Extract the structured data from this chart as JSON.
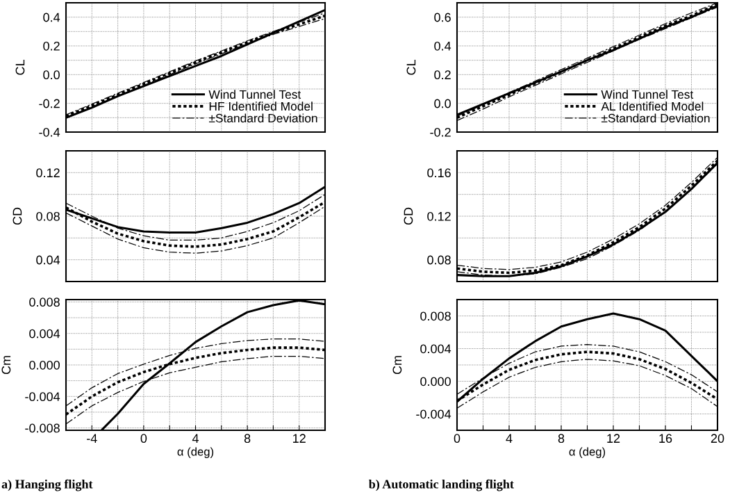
{
  "chart_data": [
    {
      "type": "line",
      "ylabel": "CL",
      "xlim": [
        -6,
        14
      ],
      "xticks": [
        {
          "value": -6,
          "label": null
        },
        -4,
        {
          "value": -2,
          "label": null
        },
        0,
        {
          "value": 2,
          "label": null
        },
        4,
        {
          "value": 6,
          "label": null
        },
        8,
        {
          "value": 10,
          "label": null
        },
        12,
        {
          "value": 14,
          "label": null
        }
      ],
      "ylim": [
        -0.4,
        0.5
      ],
      "yticks": [
        {
          "value": -0.4,
          "label": "-0.4"
        },
        {
          "value": -0.3,
          "label": null
        },
        {
          "value": -0.2,
          "label": "-0.2"
        },
        {
          "value": -0.1,
          "label": null
        },
        {
          "value": 0.0,
          "label": "0.0"
        },
        {
          "value": 0.1,
          "label": null
        },
        {
          "value": 0.2,
          "label": "0.2"
        },
        {
          "value": 0.3,
          "label": null
        },
        {
          "value": 0.4,
          "label": "0.4"
        },
        {
          "value": 0.5,
          "label": null
        }
      ],
      "tick_labels": "y",
      "grid": true,
      "legend": "bottom right",
      "x": [
        -6,
        -4,
        -2,
        0,
        2,
        4,
        6,
        8,
        10,
        12,
        14
      ],
      "series": [
        {
          "name": "Wind Tunnel Test",
          "color": "#000000",
          "line_style": "solid",
          "values": [
            -0.3,
            -0.23,
            -0.15,
            -0.08,
            -0.01,
            0.06,
            0.13,
            0.21,
            0.29,
            0.37,
            0.45
          ]
        },
        {
          "name": "HF Identified Model",
          "color": "#000000",
          "line_style": "dotted",
          "values": [
            -0.29,
            -0.215,
            -0.14,
            -0.065,
            0.01,
            0.085,
            0.155,
            0.225,
            0.29,
            0.35,
            0.41
          ]
        },
        {
          "name": "±Standard Deviation",
          "color": "#000000",
          "line_style": "dashed",
          "values": [
            -0.28,
            -0.205,
            -0.13,
            -0.055,
            0.02,
            0.095,
            0.165,
            0.235,
            0.3,
            0.365,
            0.43
          ]
        },
        {
          "color": "#000000",
          "line_style": "dashed",
          "values": [
            -0.3,
            -0.225,
            -0.15,
            -0.075,
            0.0,
            0.075,
            0.145,
            0.215,
            0.28,
            0.335,
            0.39
          ]
        }
      ]
    },
    {
      "type": "line",
      "ylabel": "CL",
      "xlim": [
        0,
        20
      ],
      "xticks": [
        0,
        {
          "value": 2,
          "label": null
        },
        4,
        {
          "value": 6,
          "label": null
        },
        8,
        {
          "value": 10,
          "label": null
        },
        12,
        {
          "value": 14,
          "label": null
        },
        16,
        {
          "value": 18,
          "label": null
        },
        20
      ],
      "ylim": [
        -0.2,
        0.7
      ],
      "yticks": [
        {
          "value": -0.2,
          "label": "-0.2"
        },
        {
          "value": -0.1,
          "label": null
        },
        {
          "value": 0.0,
          "label": "0.0"
        },
        {
          "value": 0.1,
          "label": null
        },
        {
          "value": 0.2,
          "label": "0.2"
        },
        {
          "value": 0.3,
          "label": null
        },
        {
          "value": 0.4,
          "label": "0.4"
        },
        {
          "value": 0.5,
          "label": null
        },
        {
          "value": 0.6,
          "label": "0.6"
        },
        {
          "value": 0.7,
          "label": null
        }
      ],
      "tick_labels": "y",
      "grid": true,
      "legend": "bottom right",
      "x": [
        0,
        2,
        4,
        6,
        8,
        10,
        12,
        14,
        16,
        18,
        20
      ],
      "series": [
        {
          "name": "Wind Tunnel Test",
          "color": "#000000",
          "line_style": "solid",
          "values": [
            -0.08,
            -0.005,
            0.07,
            0.145,
            0.22,
            0.3,
            0.37,
            0.45,
            0.53,
            0.6,
            0.68
          ]
        },
        {
          "name": "AL Identified Model",
          "color": "#000000",
          "line_style": "dotted",
          "values": [
            -0.1,
            -0.02,
            0.06,
            0.14,
            0.22,
            0.3,
            0.38,
            0.46,
            0.54,
            0.61,
            0.69
          ]
        },
        {
          "name": "±Standard Deviation",
          "color": "#000000",
          "line_style": "dashed",
          "values": [
            -0.09,
            -0.01,
            0.075,
            0.155,
            0.235,
            0.315,
            0.395,
            0.475,
            0.555,
            0.63,
            0.7
          ]
        },
        {
          "color": "#000000",
          "line_style": "dashed",
          "values": [
            -0.12,
            -0.04,
            0.045,
            0.125,
            0.205,
            0.285,
            0.365,
            0.445,
            0.52,
            0.595,
            0.67
          ]
        }
      ]
    },
    {
      "type": "line",
      "ylabel": "CD",
      "xlim": [
        -6,
        14
      ],
      "xticks": [
        {
          "value": -6,
          "label": null
        },
        -4,
        {
          "value": -2,
          "label": null
        },
        0,
        {
          "value": 2,
          "label": null
        },
        4,
        {
          "value": 6,
          "label": null
        },
        8,
        {
          "value": 10,
          "label": null
        },
        12,
        {
          "value": 14,
          "label": null
        }
      ],
      "ylim": [
        0.02,
        0.14
      ],
      "yticks": [
        {
          "value": 0.02,
          "label": null
        },
        {
          "value": 0.04,
          "label": "0.04"
        },
        {
          "value": 0.06,
          "label": null
        },
        {
          "value": 0.08,
          "label": "0.08"
        },
        {
          "value": 0.1,
          "label": null
        },
        {
          "value": 0.12,
          "label": "0.12"
        },
        {
          "value": 0.14,
          "label": null
        }
      ],
      "tick_labels": "y",
      "grid": true,
      "x": [
        -6,
        -4,
        -2,
        0,
        2,
        4,
        6,
        8,
        10,
        12,
        14
      ],
      "series": [
        {
          "color": "#000000",
          "line_style": "solid",
          "values": [
            0.086,
            0.078,
            0.07,
            0.066,
            0.065,
            0.065,
            0.069,
            0.074,
            0.082,
            0.092,
            0.107
          ]
        },
        {
          "color": "#000000",
          "line_style": "dotted",
          "values": [
            0.088,
            0.075,
            0.064,
            0.057,
            0.053,
            0.052,
            0.054,
            0.059,
            0.066,
            0.079,
            0.093
          ]
        },
        {
          "color": "#000000",
          "line_style": "dashed",
          "values": [
            0.092,
            0.08,
            0.069,
            0.062,
            0.058,
            0.058,
            0.06,
            0.066,
            0.074,
            0.085,
            0.1
          ]
        },
        {
          "color": "#000000",
          "line_style": "dashed",
          "values": [
            0.083,
            0.071,
            0.059,
            0.051,
            0.047,
            0.046,
            0.048,
            0.053,
            0.06,
            0.074,
            0.089
          ]
        }
      ]
    },
    {
      "type": "line",
      "ylabel": "CD",
      "xlim": [
        0,
        20
      ],
      "xticks": [
        0,
        {
          "value": 2,
          "label": null
        },
        4,
        {
          "value": 6,
          "label": null
        },
        8,
        {
          "value": 10,
          "label": null
        },
        12,
        {
          "value": 14,
          "label": null
        },
        16,
        {
          "value": 18,
          "label": null
        },
        20
      ],
      "ylim": [
        0.06,
        0.18
      ],
      "yticks": [
        {
          "value": 0.06,
          "label": null
        },
        {
          "value": 0.08,
          "label": "0.08"
        },
        {
          "value": 0.1,
          "label": null
        },
        {
          "value": 0.12,
          "label": "0.12"
        },
        {
          "value": 0.14,
          "label": null
        },
        {
          "value": 0.16,
          "label": "0.16"
        },
        {
          "value": 0.18,
          "label": null
        }
      ],
      "tick_labels": "y",
      "grid": true,
      "x": [
        0,
        2,
        4,
        6,
        8,
        10,
        12,
        14,
        16,
        18,
        20
      ],
      "series": [
        {
          "color": "#000000",
          "line_style": "solid",
          "values": [
            0.066,
            0.065,
            0.065,
            0.068,
            0.074,
            0.083,
            0.094,
            0.108,
            0.124,
            0.145,
            0.169
          ]
        },
        {
          "color": "#000000",
          "line_style": "dotted",
          "values": [
            0.072,
            0.069,
            0.068,
            0.07,
            0.075,
            0.084,
            0.096,
            0.11,
            0.127,
            0.148,
            0.171
          ]
        },
        {
          "color": "#000000",
          "line_style": "dashed",
          "values": [
            0.075,
            0.072,
            0.071,
            0.073,
            0.078,
            0.087,
            0.099,
            0.113,
            0.13,
            0.151,
            0.174
          ]
        },
        {
          "color": "#000000",
          "line_style": "dashed",
          "values": [
            0.069,
            0.066,
            0.065,
            0.067,
            0.073,
            0.081,
            0.093,
            0.107,
            0.124,
            0.145,
            0.168
          ]
        }
      ]
    },
    {
      "type": "line",
      "ylabel": "Cm",
      "xlabel": "α (deg)",
      "xlim": [
        -6,
        14
      ],
      "xticks": [
        {
          "value": -6,
          "label": null
        },
        -4,
        {
          "value": -2,
          "label": null
        },
        0,
        {
          "value": 2,
          "label": null
        },
        4,
        {
          "value": 6,
          "label": null
        },
        8,
        {
          "value": 10,
          "label": null
        },
        12,
        {
          "value": 14,
          "label": null
        }
      ],
      "ylim": [
        -0.0083,
        0.0083
      ],
      "yticks": [
        {
          "value": -0.008,
          "label": "-0.008"
        },
        {
          "value": -0.006,
          "label": null
        },
        {
          "value": -0.004,
          "label": "-0.004"
        },
        {
          "value": -0.002,
          "label": null
        },
        {
          "value": 0.0,
          "label": "0.000"
        },
        {
          "value": 0.002,
          "label": null
        },
        {
          "value": 0.004,
          "label": "0.004"
        },
        {
          "value": 0.006,
          "label": null
        },
        {
          "value": 0.008,
          "label": "0.008"
        }
      ],
      "grid": true,
      "annotations": [
        "a) Hanging flight"
      ],
      "x": [
        -6,
        -4,
        -2,
        0,
        2,
        4,
        6,
        8,
        10,
        12,
        14
      ],
      "series": [
        {
          "color": "#000000",
          "line_style": "solid",
          "x": [
            -3.2,
            -2,
            0,
            2,
            4,
            6,
            8,
            10,
            12,
            14
          ],
          "values": [
            -0.0082,
            -0.0062,
            -0.0024,
            0.0002,
            0.0029,
            0.0049,
            0.0067,
            0.0076,
            0.0082,
            0.0077
          ]
        },
        {
          "color": "#000000",
          "line_style": "dotted",
          "values": [
            -0.0063,
            -0.004,
            -0.0022,
            -0.0009,
            0.0001,
            0.0009,
            0.0015,
            0.0019,
            0.0022,
            0.0022,
            0.0019
          ]
        },
        {
          "color": "#000000",
          "line_style": "dashed",
          "values": [
            -0.0052,
            -0.0029,
            -0.0011,
            0.0001,
            0.0012,
            0.0021,
            0.0027,
            0.0031,
            0.0033,
            0.0033,
            0.003
          ]
        },
        {
          "color": "#000000",
          "line_style": "dashed",
          "values": [
            -0.0075,
            -0.0052,
            -0.0035,
            -0.0021,
            -0.001,
            -0.0003,
            0.0004,
            0.0008,
            0.0011,
            0.0011,
            0.0008
          ]
        }
      ]
    },
    {
      "type": "line",
      "ylabel": "Cm",
      "xlabel": "α (deg)",
      "xlim": [
        0,
        20
      ],
      "xticks": [
        0,
        {
          "value": 2,
          "label": null
        },
        4,
        {
          "value": 6,
          "label": null
        },
        8,
        {
          "value": 10,
          "label": null
        },
        12,
        {
          "value": 14,
          "label": null
        },
        16,
        {
          "value": 18,
          "label": null
        },
        20
      ],
      "ylim": [
        -0.006,
        0.01
      ],
      "yticks": [
        {
          "value": -0.006,
          "label": null
        },
        {
          "value": -0.004,
          "label": "-0.004"
        },
        {
          "value": -0.002,
          "label": null
        },
        {
          "value": 0.0,
          "label": "0.000"
        },
        {
          "value": 0.002,
          "label": null
        },
        {
          "value": 0.004,
          "label": "0.004"
        },
        {
          "value": 0.006,
          "label": null
        },
        {
          "value": 0.008,
          "label": "0.008"
        },
        {
          "value": 0.01,
          "label": null
        }
      ],
      "grid": true,
      "annotations": [
        "b) Automatic landing flight"
      ],
      "x": [
        0,
        2,
        4,
        6,
        8,
        10,
        12,
        14,
        16,
        18,
        20
      ],
      "series": [
        {
          "color": "#000000",
          "line_style": "solid",
          "values": [
            -0.0025,
            0.0003,
            0.0028,
            0.0049,
            0.0067,
            0.0076,
            0.0083,
            0.0076,
            0.0062,
            0.0031,
            0.0
          ]
        },
        {
          "color": "#000000",
          "line_style": "dotted",
          "values": [
            -0.0024,
            -0.0004,
            0.0014,
            0.0026,
            0.0033,
            0.0036,
            0.0034,
            0.0027,
            0.0015,
            -0.0002,
            -0.0022
          ]
        },
        {
          "color": "#000000",
          "line_style": "dashed",
          "values": [
            -0.0016,
            0.0004,
            0.0022,
            0.0036,
            0.0043,
            0.0045,
            0.0043,
            0.0036,
            0.0024,
            0.0008,
            -0.0013
          ]
        },
        {
          "color": "#000000",
          "line_style": "dashed",
          "values": [
            -0.0033,
            -0.0013,
            0.0005,
            0.0017,
            0.0024,
            0.0027,
            0.0025,
            0.0019,
            0.0007,
            -0.0009,
            -0.0031
          ]
        }
      ]
    }
  ]
}
